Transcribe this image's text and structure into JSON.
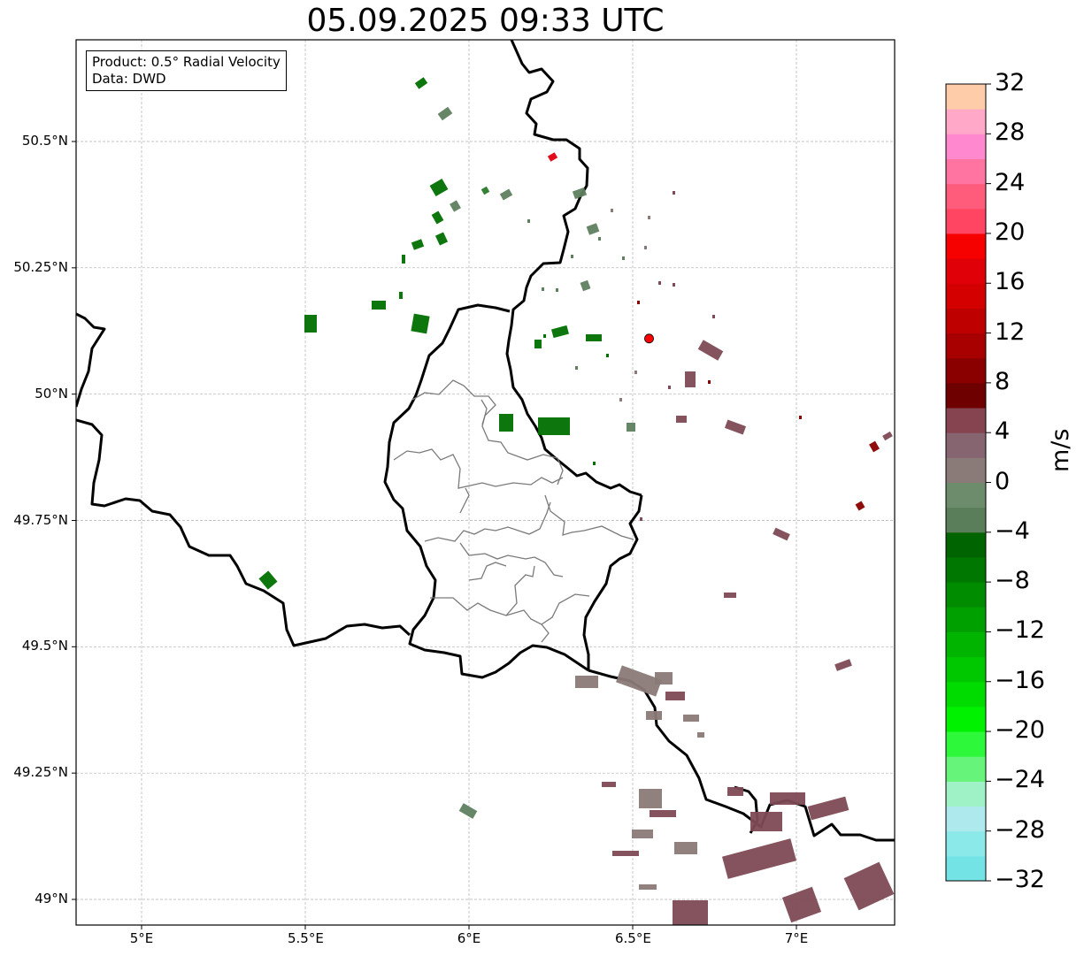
{
  "title": "05.09.2025 09:33 UTC",
  "info": {
    "product": "Product: 0.5° Radial Velocity",
    "data": "Data: DWD"
  },
  "map": {
    "lon_range": [
      4.8,
      7.3
    ],
    "lat_range": [
      48.95,
      50.7
    ],
    "lon_ticks": [
      {
        "v": 5.0,
        "label": "5°E"
      },
      {
        "v": 5.5,
        "label": "5.5°E"
      },
      {
        "v": 6.0,
        "label": "6°E"
      },
      {
        "v": 6.5,
        "label": "6.5°E"
      },
      {
        "v": 7.0,
        "label": "7°E"
      }
    ],
    "lat_ticks": [
      {
        "v": 49.0,
        "label": "49°N"
      },
      {
        "v": 49.25,
        "label": "49.25°N"
      },
      {
        "v": 49.5,
        "label": "49.5°N"
      },
      {
        "v": 49.75,
        "label": "49.75°N"
      },
      {
        "v": 50.0,
        "label": "50°N"
      },
      {
        "v": 50.25,
        "label": "50.25°N"
      },
      {
        "v": 50.5,
        "label": "50.5°N"
      }
    ],
    "radar_site": {
      "lon": 6.55,
      "lat": 50.11,
      "color": "#ff0000"
    }
  },
  "colorbar": {
    "unit": "m/s",
    "min": -32,
    "max": 32,
    "tick_labels": [
      "32",
      "28",
      "24",
      "20",
      "16",
      "12",
      "8",
      "4",
      "0",
      "−4",
      "−8",
      "−12",
      "−16",
      "−20",
      "−24",
      "−28",
      "−32"
    ],
    "colors_bottom_to_top": [
      "#74e3e6",
      "#8ce9ea",
      "#aee9ee",
      "#9ef2c6",
      "#66f57a",
      "#2ef83a",
      "#00f200",
      "#00dc00",
      "#00c800",
      "#00b400",
      "#00a000",
      "#008c00",
      "#007800",
      "#006400",
      "#5a7d5a",
      "#6c8c6c",
      "#8a7a78",
      "#866470",
      "#864450",
      "#6e0000",
      "#8a0000",
      "#a80000",
      "#bf0000",
      "#d40000",
      "#e00008",
      "#f60000",
      "#ff4562",
      "#ff5c7c",
      "#ff74a0",
      "#ff88ce",
      "#ffa8c8",
      "#ffccaa"
    ]
  },
  "echo_colors": {
    "green_strong": "#007000",
    "green_mid": "#2a7a2a",
    "green_gray": "#5f805f",
    "gray": "#8a7a78",
    "mauve": "#7e4a55",
    "dark_red": "#8a0000",
    "red": "#e00010"
  }
}
